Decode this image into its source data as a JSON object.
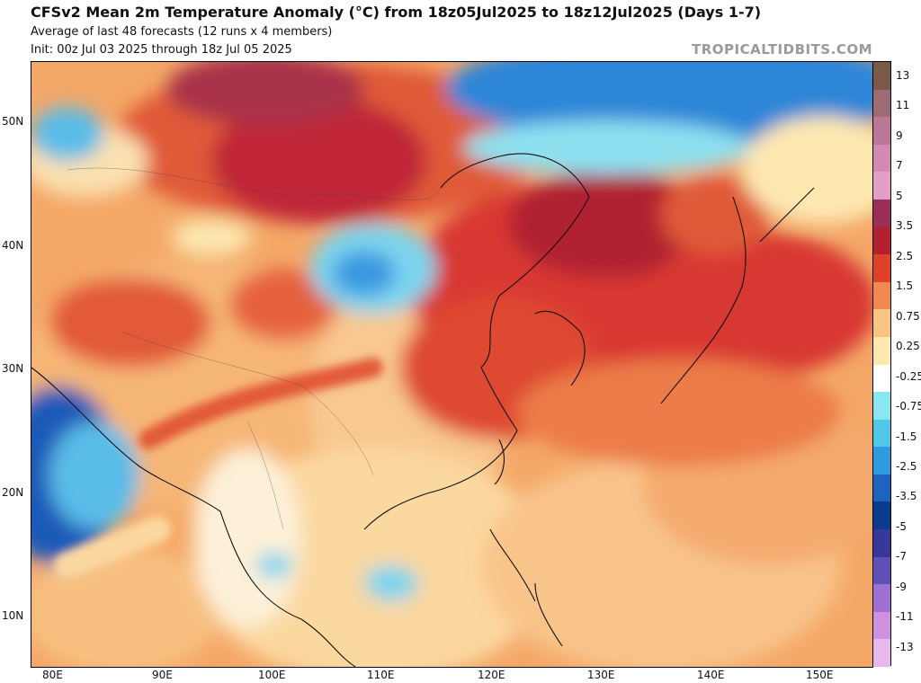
{
  "header": {
    "title": "CFSv2 Mean 2m Temperature Anomaly (°C) from 18z05Jul2025 to 18z12Jul2025 (Days 1-7)",
    "line2": "Average of last 48 forecasts (12 runs x 4 members)",
    "line3": "Init: 00z Jul 03 2025 through 18z Jul 05 2025",
    "brand": "TROPICALTIDBITS.COM"
  },
  "map": {
    "lat_labels": [
      "50N",
      "40N",
      "30N",
      "20N",
      "10N"
    ],
    "lon_labels": [
      "80E",
      "90E",
      "100E",
      "110E",
      "120E",
      "130E",
      "140E",
      "150E"
    ]
  },
  "colorbar": {
    "labels": [
      "13",
      "11",
      "9",
      "7",
      "5",
      "3.5",
      "2.5",
      "1.5",
      "0.75",
      "0.25",
      "-0.25",
      "-0.75",
      "-1.5",
      "-2.5",
      "-3.5",
      "-5",
      "-7",
      "-9",
      "-11",
      "-13"
    ],
    "colors": [
      "#7a5a48",
      "#9c6b73",
      "#b87896",
      "#d18ab0",
      "#e1a0c4",
      "#9a3058",
      "#b52030",
      "#de4028",
      "#f08850",
      "#f8c480",
      "#fde8b0",
      "#ffffff",
      "#8ae6f0",
      "#50c8ea",
      "#2e9ae0",
      "#1c64c0",
      "#0c3a8c",
      "#38389c",
      "#6050b8",
      "#a070d0",
      "#d090e0",
      "#e8b8ec"
    ]
  }
}
